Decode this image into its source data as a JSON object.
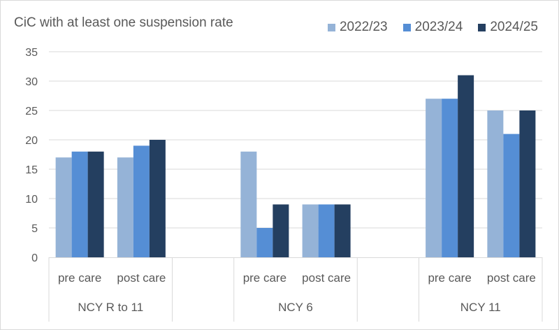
{
  "header": {
    "title": "CiC with at least one suspension rate"
  },
  "legend": [
    {
      "label": "2022/23",
      "color": "#95B3D7"
    },
    {
      "label": "2023/24",
      "color": "#558ED5"
    },
    {
      "label": "2024/25",
      "color": "#243F60"
    }
  ],
  "chart_data": {
    "type": "bar",
    "title": "CiC with at least one suspension rate",
    "xlabel": "",
    "ylabel": "",
    "ylim": [
      0,
      35
    ],
    "yticks": [
      0,
      5,
      10,
      15,
      20,
      25,
      30,
      35
    ],
    "grid": true,
    "legend_position": "top-right",
    "groups": [
      "NCY R to 11",
      "NCY 6",
      "NCY 11"
    ],
    "categories": [
      "NCY R to 11 - pre care",
      "NCY R to 11 - post care",
      "NCY 6 - pre care",
      "NCY 6 - post care",
      "NCY 11 - pre care",
      "NCY 11 - post care"
    ],
    "sub_labels": [
      "pre care",
      "post care",
      "pre care",
      "post care",
      "pre care",
      "post care"
    ],
    "series": [
      {
        "name": "2022/23",
        "color": "#95B3D7",
        "values": [
          17,
          17,
          18,
          9,
          27,
          25
        ]
      },
      {
        "name": "2023/24",
        "color": "#558ED5",
        "values": [
          18,
          19,
          5,
          9,
          27,
          21
        ]
      },
      {
        "name": "2024/25",
        "color": "#243F60",
        "values": [
          18,
          20,
          9,
          9,
          31,
          25
        ]
      }
    ]
  }
}
